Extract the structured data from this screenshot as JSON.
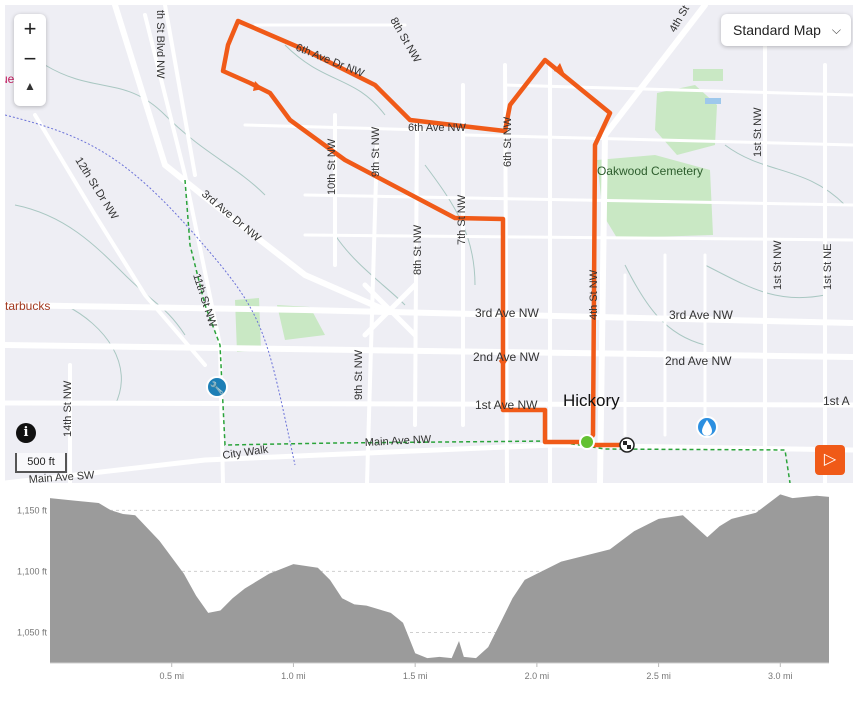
{
  "map": {
    "zoom_in": "+",
    "zoom_out": "−",
    "compass": "▲",
    "map_type": "Standard Map",
    "scale": "500 ft",
    "info": "i",
    "play": "▷",
    "city_label": "Hickory",
    "poi_cemetery": "Oakwood Cemetery",
    "poi_starbucks": "tarbucks",
    "edge_fragment": "ue",
    "streets": {
      "ave6_dr": "6th Ave Dr NW",
      "ave6": "6th Ave NW",
      "ave3_dr": "3rd Ave Dr NW",
      "ave3_a": "3rd Ave NW",
      "ave3_b": "3rd Ave NW",
      "ave2_a": "2nd Ave NW",
      "ave2_b": "2nd Ave NW",
      "ave1": "1st Ave NW",
      "ave1_edge": "1st A",
      "main": "Main Ave NW",
      "main_sw": "Main Ave SW",
      "city_walk": "City Walk",
      "st4": "4th St NW",
      "st6": "6th St NW",
      "st7": "7th St NW",
      "st8": "8th St NW",
      "st8b": "8th St NW",
      "st9": "9th St NW",
      "st9b": "9th St NW",
      "st10": "10th St NW",
      "st11": "11th St NW",
      "st12": "12th St Dr NW",
      "st14": "14th St NW",
      "st1": "1st St NW",
      "st1b": "1st St NW",
      "st1ne": "1st St NE",
      "st4th": "4th St",
      "blvd": "th St Blvd NW"
    },
    "colors": {
      "route": "#f05a18",
      "trail": "#2aa33a",
      "park": "#c9e8c4"
    }
  },
  "elevation": {
    "y_ticks": [
      "1,150 ft",
      "1,100 ft",
      "1,050 ft"
    ],
    "x_ticks": [
      "0.5 mi",
      "1.0 mi",
      "1.5 mi",
      "2.0 mi",
      "2.5 mi",
      "3.0 mi"
    ],
    "x_range": [
      0,
      3.2
    ],
    "y_range": [
      1025,
      1165
    ]
  },
  "chart_data": {
    "type": "area",
    "xlabel": "",
    "ylabel": "",
    "xlim": [
      0,
      3.2
    ],
    "ylim": [
      1025,
      1165
    ],
    "x": [
      0,
      0.1,
      0.2,
      0.25,
      0.3,
      0.35,
      0.45,
      0.55,
      0.6,
      0.65,
      0.7,
      0.75,
      0.8,
      0.9,
      1.0,
      1.1,
      1.15,
      1.2,
      1.25,
      1.3,
      1.4,
      1.45,
      1.5,
      1.55,
      1.6,
      1.65,
      1.68,
      1.7,
      1.75,
      1.8,
      1.85,
      1.9,
      1.95,
      2.0,
      2.1,
      2.2,
      2.3,
      2.4,
      2.5,
      2.6,
      2.65,
      2.7,
      2.75,
      2.8,
      2.9,
      3.0,
      3.05,
      3.1,
      3.15,
      3.2
    ],
    "values": [
      1160,
      1158,
      1156,
      1150,
      1147,
      1146,
      1125,
      1098,
      1080,
      1066,
      1068,
      1078,
      1086,
      1098,
      1106,
      1103,
      1093,
      1078,
      1073,
      1072,
      1066,
      1058,
      1033,
      1029,
      1030,
      1029,
      1043,
      1030,
      1029,
      1038,
      1058,
      1078,
      1093,
      1098,
      1108,
      1113,
      1118,
      1133,
      1143,
      1146,
      1137,
      1128,
      1137,
      1143,
      1148,
      1163,
      1160,
      1161,
      1162,
      1161
    ]
  }
}
